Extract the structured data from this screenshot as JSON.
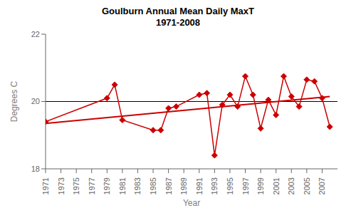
{
  "chart_data": {
    "type": "line",
    "title": "Goulburn Annual Mean Daily MaxT\n1971-2008",
    "xlabel": "Year",
    "ylabel": "Degrees C",
    "xlim": [
      1971,
      2009
    ],
    "xticks": [
      1971,
      1973,
      1975,
      1977,
      1979,
      1981,
      1983,
      1985,
      1987,
      1989,
      1991,
      1993,
      1995,
      1997,
      1999,
      2001,
      2003,
      2005,
      2007
    ],
    "ylim": [
      18,
      22
    ],
    "yticks": [
      18,
      20,
      22
    ],
    "grid": false,
    "series": [
      {
        "x": [
          1971,
          1979,
          1980,
          1981,
          1985,
          1986,
          1987,
          1988,
          1991,
          1992,
          1993,
          1994,
          1995,
          1996,
          1997,
          1998,
          1999,
          2000,
          2001,
          2002,
          2003,
          2004,
          2005,
          2006,
          2007,
          2008
        ],
        "values": [
          19.4,
          20.1,
          20.5,
          19.45,
          19.15,
          19.15,
          19.8,
          19.85,
          20.2,
          20.25,
          18.4,
          19.9,
          20.2,
          19.85,
          20.75,
          20.2,
          19.2,
          20.05,
          19.6,
          20.75,
          20.15,
          19.85,
          20.65,
          20.6,
          20.1,
          19.25
        ],
        "color": "#CC0000",
        "marker": "diamond"
      },
      {
        "x": [
          1971,
          2008
        ],
        "values": [
          19.35,
          20.15
        ],
        "color": "#CC0000"
      }
    ],
    "reference_lines": [
      {
        "y": 20.0,
        "color": "#000000"
      }
    ]
  }
}
